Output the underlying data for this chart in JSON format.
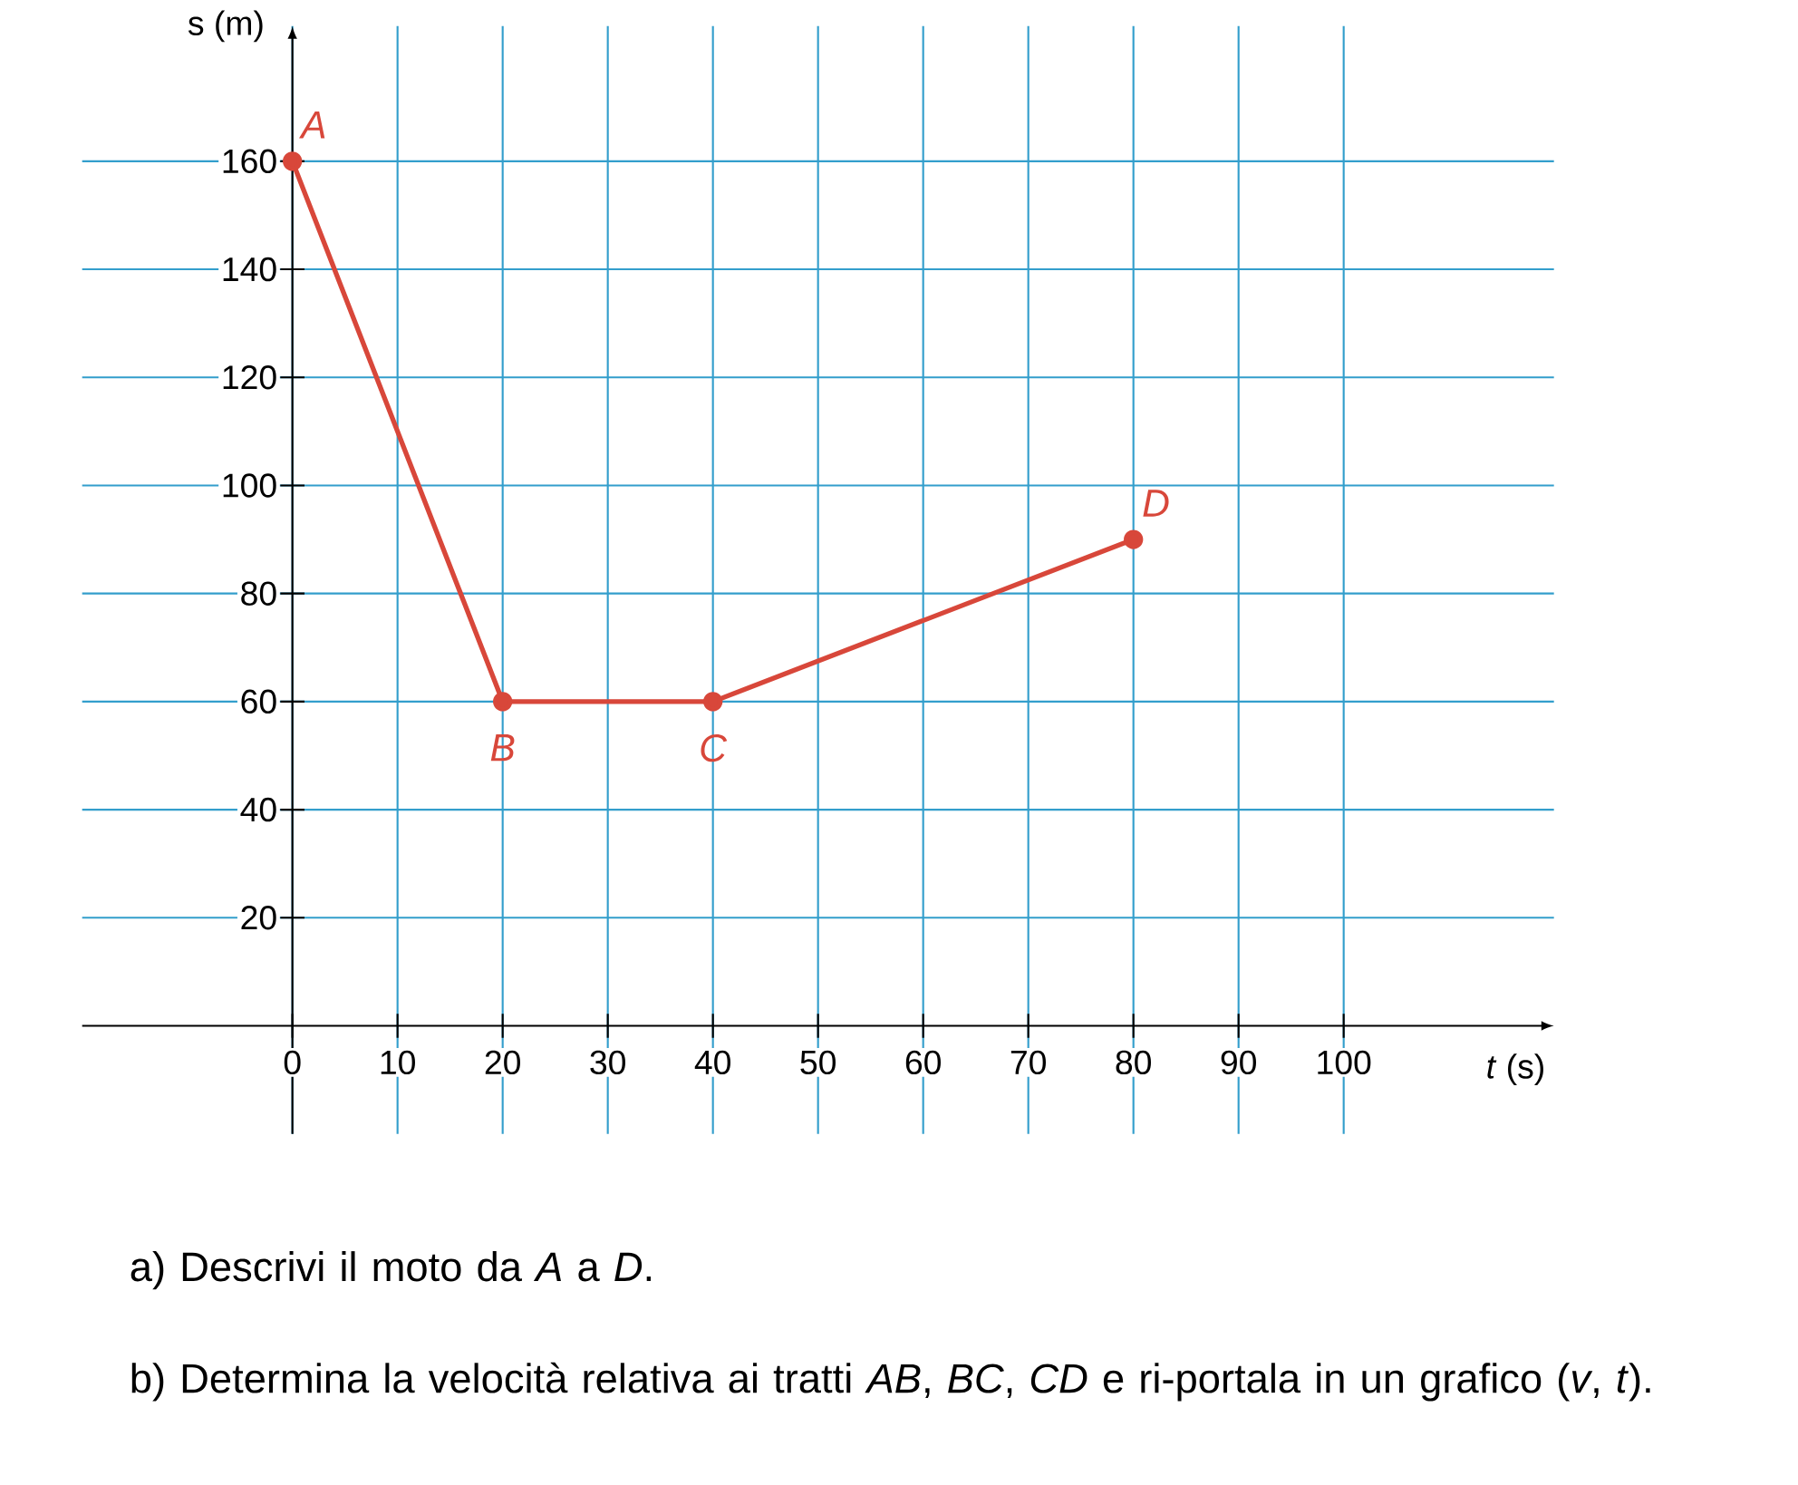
{
  "chart_data": {
    "type": "line",
    "xlabel": "*t* (s)",
    "ylabel": "s (m)",
    "x": [
      0,
      20,
      40,
      80
    ],
    "series": [
      {
        "color": "#d8473a",
        "values": [
          160,
          60,
          60,
          90
        ]
      }
    ],
    "xlim": [
      -20,
      120
    ],
    "ylim": [
      -20,
      185
    ],
    "xticks": [
      0,
      10,
      20,
      30,
      40,
      50,
      60,
      70,
      80,
      90,
      100
    ],
    "yticks": [
      20,
      40,
      60,
      80,
      100,
      120,
      140,
      160
    ],
    "grid": true,
    "marker": "circle",
    "line_style": "solid",
    "annotations": [
      {
        "text": "*A*",
        "x": 0,
        "y": 160
      },
      {
        "text": "*B*",
        "x": 20,
        "y": 60
      },
      {
        "text": "*C*",
        "x": 40,
        "y": 60
      },
      {
        "text": "*D*",
        "x": 80,
        "y": 90
      },
      "a) Descrivi il moto da *A* a *D*.",
      "b) Determina la velocità relativa ai tratti *AB*, *BC*, *CD* e ri-portala in un grafico (*v*, *t*)."
    ]
  }
}
